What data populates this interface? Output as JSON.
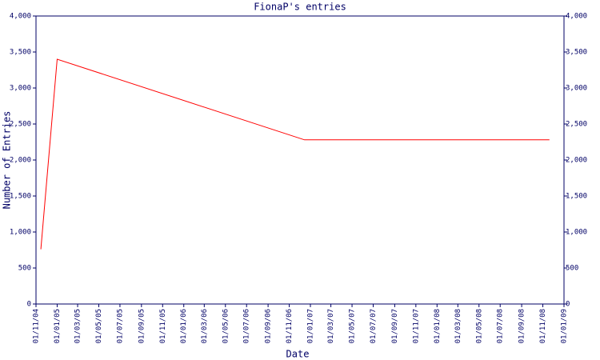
{
  "chart_data": {
    "type": "line",
    "title": "FionaP's entries",
    "x_label": "Date",
    "y_label": "Number of Entries",
    "x": [
      "15/11/04",
      "01/01/05",
      "15/12/06",
      "20/11/08"
    ],
    "series": [
      {
        "name": "entries",
        "color": "#ff0000",
        "values": [
          760,
          3400,
          2280,
          2280
        ]
      }
    ],
    "xlim": [
      "01/11/04",
      "01/01/09"
    ],
    "xticks": [
      "01/11/04",
      "01/01/05",
      "01/03/05",
      "01/05/05",
      "01/07/05",
      "01/09/05",
      "01/11/05",
      "01/01/06",
      "01/03/06",
      "01/05/06",
      "01/07/06",
      "01/09/06",
      "01/11/06",
      "01/01/07",
      "01/03/07",
      "01/05/07",
      "01/07/07",
      "01/09/07",
      "01/11/07",
      "01/01/08",
      "01/03/08",
      "01/05/08",
      "01/07/08",
      "01/09/08",
      "01/11/08",
      "01/01/09"
    ],
    "ylim": [
      0,
      4000
    ],
    "yticks": [
      0,
      500,
      {
        "value": 1000,
        "label": "1,000"
      },
      {
        "value": 1500,
        "label": "1,500"
      },
      {
        "value": 2000,
        "label": "2,000"
      },
      {
        "value": 2500,
        "label": "2,500"
      },
      {
        "value": 3000,
        "label": "3,000"
      },
      {
        "value": 3500,
        "label": "3,500"
      },
      {
        "value": 4000,
        "label": "4,000"
      }
    ],
    "right_axis": true
  }
}
